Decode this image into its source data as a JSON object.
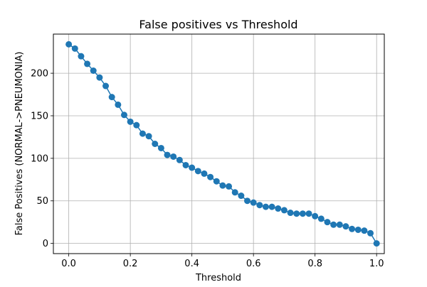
{
  "chart_data": {
    "type": "line",
    "title": "False positives vs Threshold",
    "xlabel": "Threshold",
    "ylabel": "False Positives (NORMAL->PNEUMONIA)",
    "xlim": [
      -0.05,
      1.025
    ],
    "ylim": [
      -12,
      246
    ],
    "xticks": [
      0.0,
      0.2,
      0.4,
      0.6,
      0.8,
      1.0
    ],
    "xtick_labels": [
      "0.0",
      "0.2",
      "0.4",
      "0.6",
      "0.8",
      "1.0"
    ],
    "yticks": [
      0,
      50,
      100,
      150,
      200
    ],
    "ytick_labels": [
      "0",
      "50",
      "100",
      "150",
      "200"
    ],
    "grid": true,
    "marker": "circle",
    "series": [
      {
        "color": "#1f77b4",
        "x": [
          0.0,
          0.02,
          0.04,
          0.06,
          0.08,
          0.1,
          0.12,
          0.14,
          0.16,
          0.18,
          0.2,
          0.22,
          0.24,
          0.26,
          0.28,
          0.3,
          0.32,
          0.34,
          0.36,
          0.38,
          0.4,
          0.42,
          0.44,
          0.46,
          0.48,
          0.5,
          0.52,
          0.54,
          0.56,
          0.58,
          0.6,
          0.62,
          0.64,
          0.66,
          0.68,
          0.7,
          0.72,
          0.74,
          0.76,
          0.78,
          0.8,
          0.82,
          0.84,
          0.86,
          0.88,
          0.9,
          0.92,
          0.94,
          0.96,
          0.98,
          1.0
        ],
        "values": [
          234,
          229,
          220,
          211,
          203,
          195,
          185,
          172,
          163,
          151,
          143,
          139,
          129,
          126,
          117,
          112,
          104,
          102,
          98,
          92,
          89,
          85,
          82,
          78,
          73,
          68,
          67,
          60,
          56,
          50,
          48,
          45,
          43,
          43,
          41,
          39,
          36,
          35,
          35,
          35,
          32,
          29,
          25,
          22,
          22,
          20,
          17,
          16,
          15,
          12,
          0
        ]
      }
    ]
  }
}
